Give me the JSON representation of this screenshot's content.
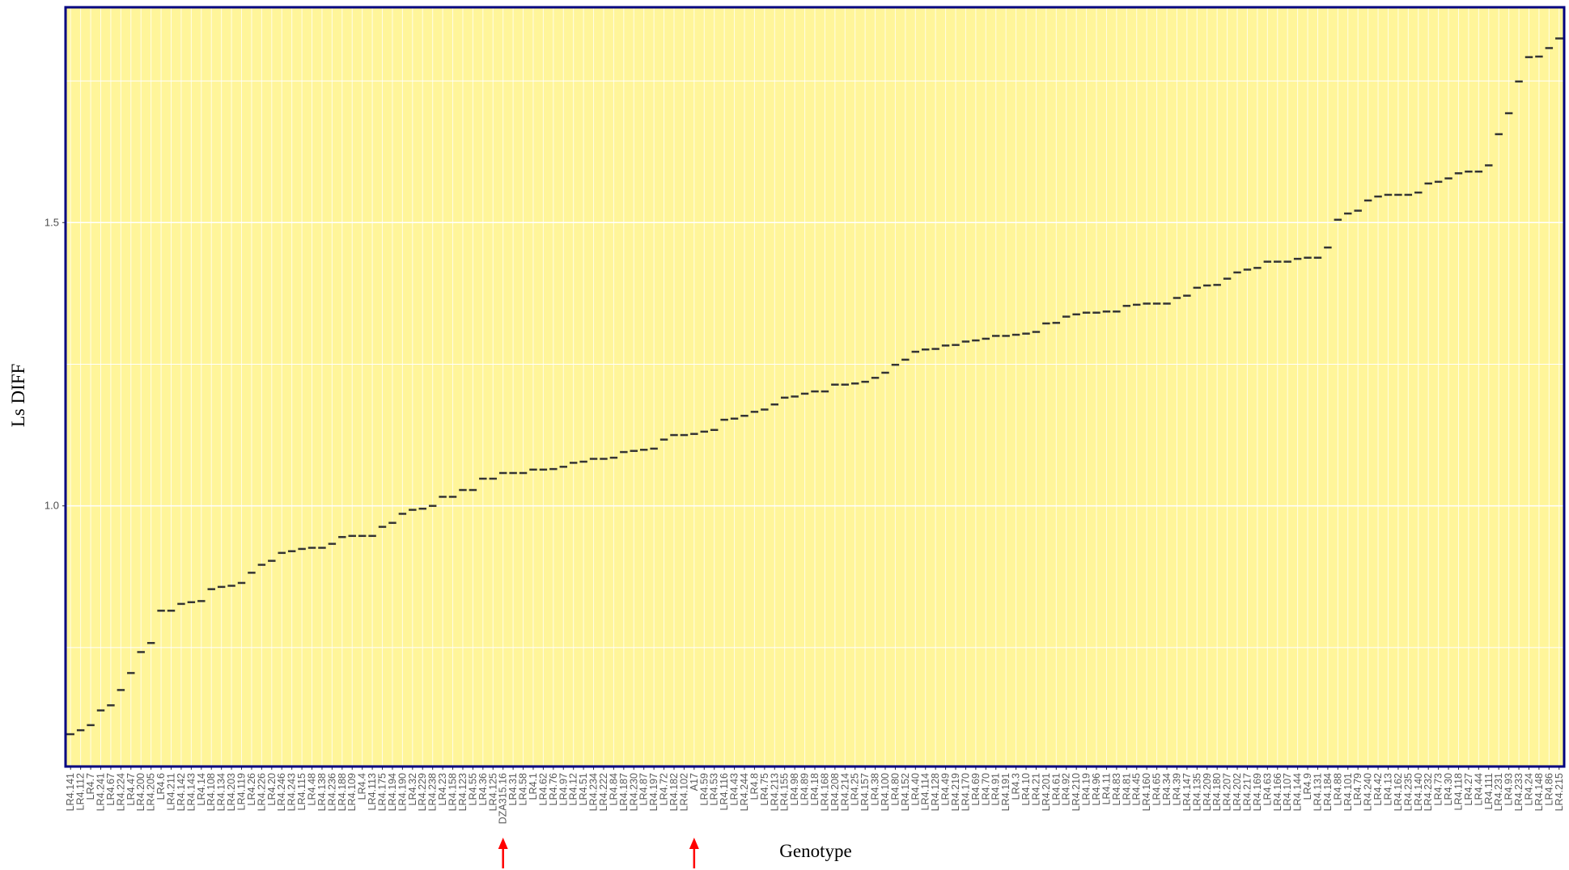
{
  "chart_data": {
    "type": "dash",
    "x_label": "Genotype",
    "y_label": "Ls DIFF",
    "categories": [
      "LR4.141",
      "LR4.112",
      "LR4.7",
      "LR4.241",
      "LR4.67",
      "LR4.224",
      "LR4.47",
      "LR4.200",
      "LR4.205",
      "LR4.6",
      "LR4.211",
      "LR4.142",
      "LR4.143",
      "LR4.14",
      "LR4.108",
      "LR4.134",
      "LR4.203",
      "LR4.119",
      "LR4.26",
      "LR4.226",
      "LR4.20",
      "LR4.246",
      "LR4.243",
      "LR4.115",
      "LR4.48",
      "LR4.138",
      "LR4.236",
      "LR4.188",
      "LR4.109",
      "LR4.4",
      "LR4.113",
      "LR4.175",
      "LR4.194",
      "LR4.190",
      "LR4.32",
      "LR4.229",
      "LR4.238",
      "LR4.23",
      "LR4.158",
      "LR4.123",
      "LR4.55",
      "LR4.36",
      "LR4.125",
      "DZA315.16",
      "LR4.31",
      "LR4.58",
      "LR4.1",
      "LR4.62",
      "LR4.76",
      "LR4.97",
      "LR4.12",
      "LR4.51",
      "LR4.234",
      "LR4.222",
      "LR4.84",
      "LR4.187",
      "LR4.230",
      "LR4.87",
      "LR4.197",
      "LR4.72",
      "LR4.182",
      "LR4.102",
      "A17",
      "LR4.59",
      "LR4.53",
      "LR4.116",
      "LR4.43",
      "LR4.244",
      "LR4.8",
      "LR4.75",
      "LR4.213",
      "LR4.155",
      "LR4.98",
      "LR4.89",
      "LR4.18",
      "LR4.168",
      "LR4.208",
      "LR4.214",
      "LR4.25",
      "LR4.157",
      "LR4.38",
      "LR4.100",
      "LR4.80",
      "LR4.152",
      "LR4.40",
      "LR4.114",
      "LR4.128",
      "LR4.49",
      "LR4.219",
      "LR4.170",
      "LR4.69",
      "LR4.70",
      "LR4.91",
      "LR4.191",
      "LR4.3",
      "LR4.10",
      "LR4.21",
      "LR4.201",
      "LR4.61",
      "LR4.92",
      "LR4.210",
      "LR4.19",
      "LR4.96",
      "LR4.11",
      "LR4.83",
      "LR4.81",
      "LR4.45",
      "LR4.160",
      "LR4.65",
      "LR4.34",
      "LR4.39",
      "LR4.147",
      "LR4.135",
      "LR4.209",
      "LR4.180",
      "LR4.207",
      "LR4.202",
      "LR4.217",
      "LR4.169",
      "LR4.63",
      "LR4.166",
      "LR4.107",
      "LR4.144",
      "LR4.9",
      "LR4.131",
      "LR4.184",
      "LR4.88",
      "LR4.101",
      "LR4.79",
      "LR4.240",
      "LR4.42",
      "LR4.13",
      "LR4.162",
      "LR4.235",
      "LR4.140",
      "LR4.232",
      "LR4.73",
      "LR4.30",
      "LR4.118",
      "LR4.27",
      "LR4.44",
      "LR4.111",
      "LR4.231",
      "LR4.93",
      "LR4.233",
      "LR4.24",
      "LR4.148",
      "LR4.86",
      "LR4.215"
    ],
    "values": [
      0.597,
      0.604,
      0.613,
      0.639,
      0.648,
      0.675,
      0.705,
      0.742,
      0.758,
      0.815,
      0.815,
      0.827,
      0.83,
      0.832,
      0.853,
      0.857,
      0.859,
      0.864,
      0.882,
      0.896,
      0.903,
      0.917,
      0.92,
      0.924,
      0.926,
      0.926,
      0.933,
      0.945,
      0.947,
      0.947,
      0.947,
      0.963,
      0.97,
      0.986,
      0.993,
      0.995,
      1.0,
      1.016,
      1.016,
      1.028,
      1.028,
      1.048,
      1.048,
      1.058,
      1.058,
      1.058,
      1.064,
      1.064,
      1.065,
      1.069,
      1.076,
      1.078,
      1.083,
      1.083,
      1.085,
      1.095,
      1.097,
      1.099,
      1.101,
      1.117,
      1.125,
      1.125,
      1.127,
      1.131,
      1.134,
      1.152,
      1.154,
      1.159,
      1.166,
      1.17,
      1.179,
      1.191,
      1.193,
      1.198,
      1.202,
      1.202,
      1.214,
      1.214,
      1.216,
      1.219,
      1.226,
      1.235,
      1.249,
      1.258,
      1.272,
      1.276,
      1.277,
      1.283,
      1.284,
      1.29,
      1.292,
      1.295,
      1.3,
      1.3,
      1.302,
      1.304,
      1.307,
      1.322,
      1.323,
      1.334,
      1.338,
      1.341,
      1.341,
      1.343,
      1.343,
      1.353,
      1.355,
      1.357,
      1.357,
      1.357,
      1.367,
      1.371,
      1.385,
      1.389,
      1.39,
      1.401,
      1.412,
      1.417,
      1.42,
      1.431,
      1.431,
      1.431,
      1.436,
      1.438,
      1.438,
      1.456,
      1.505,
      1.516,
      1.521,
      1.539,
      1.546,
      1.549,
      1.549,
      1.549,
      1.553,
      1.569,
      1.572,
      1.578,
      1.587,
      1.59,
      1.59,
      1.601,
      1.656,
      1.693,
      1.749,
      1.792,
      1.793,
      1.808,
      1.825
    ],
    "color": "#333333",
    "background": "#fff59a",
    "border_color": "#000080",
    "ylim": [
      0.54,
      1.88
    ],
    "yticks": [
      {
        "value": 1,
        "label": "1.0"
      },
      1.5
    ],
    "minor_yticks": [
      0.75,
      1.25,
      1.75
    ],
    "grid": true
  }
}
